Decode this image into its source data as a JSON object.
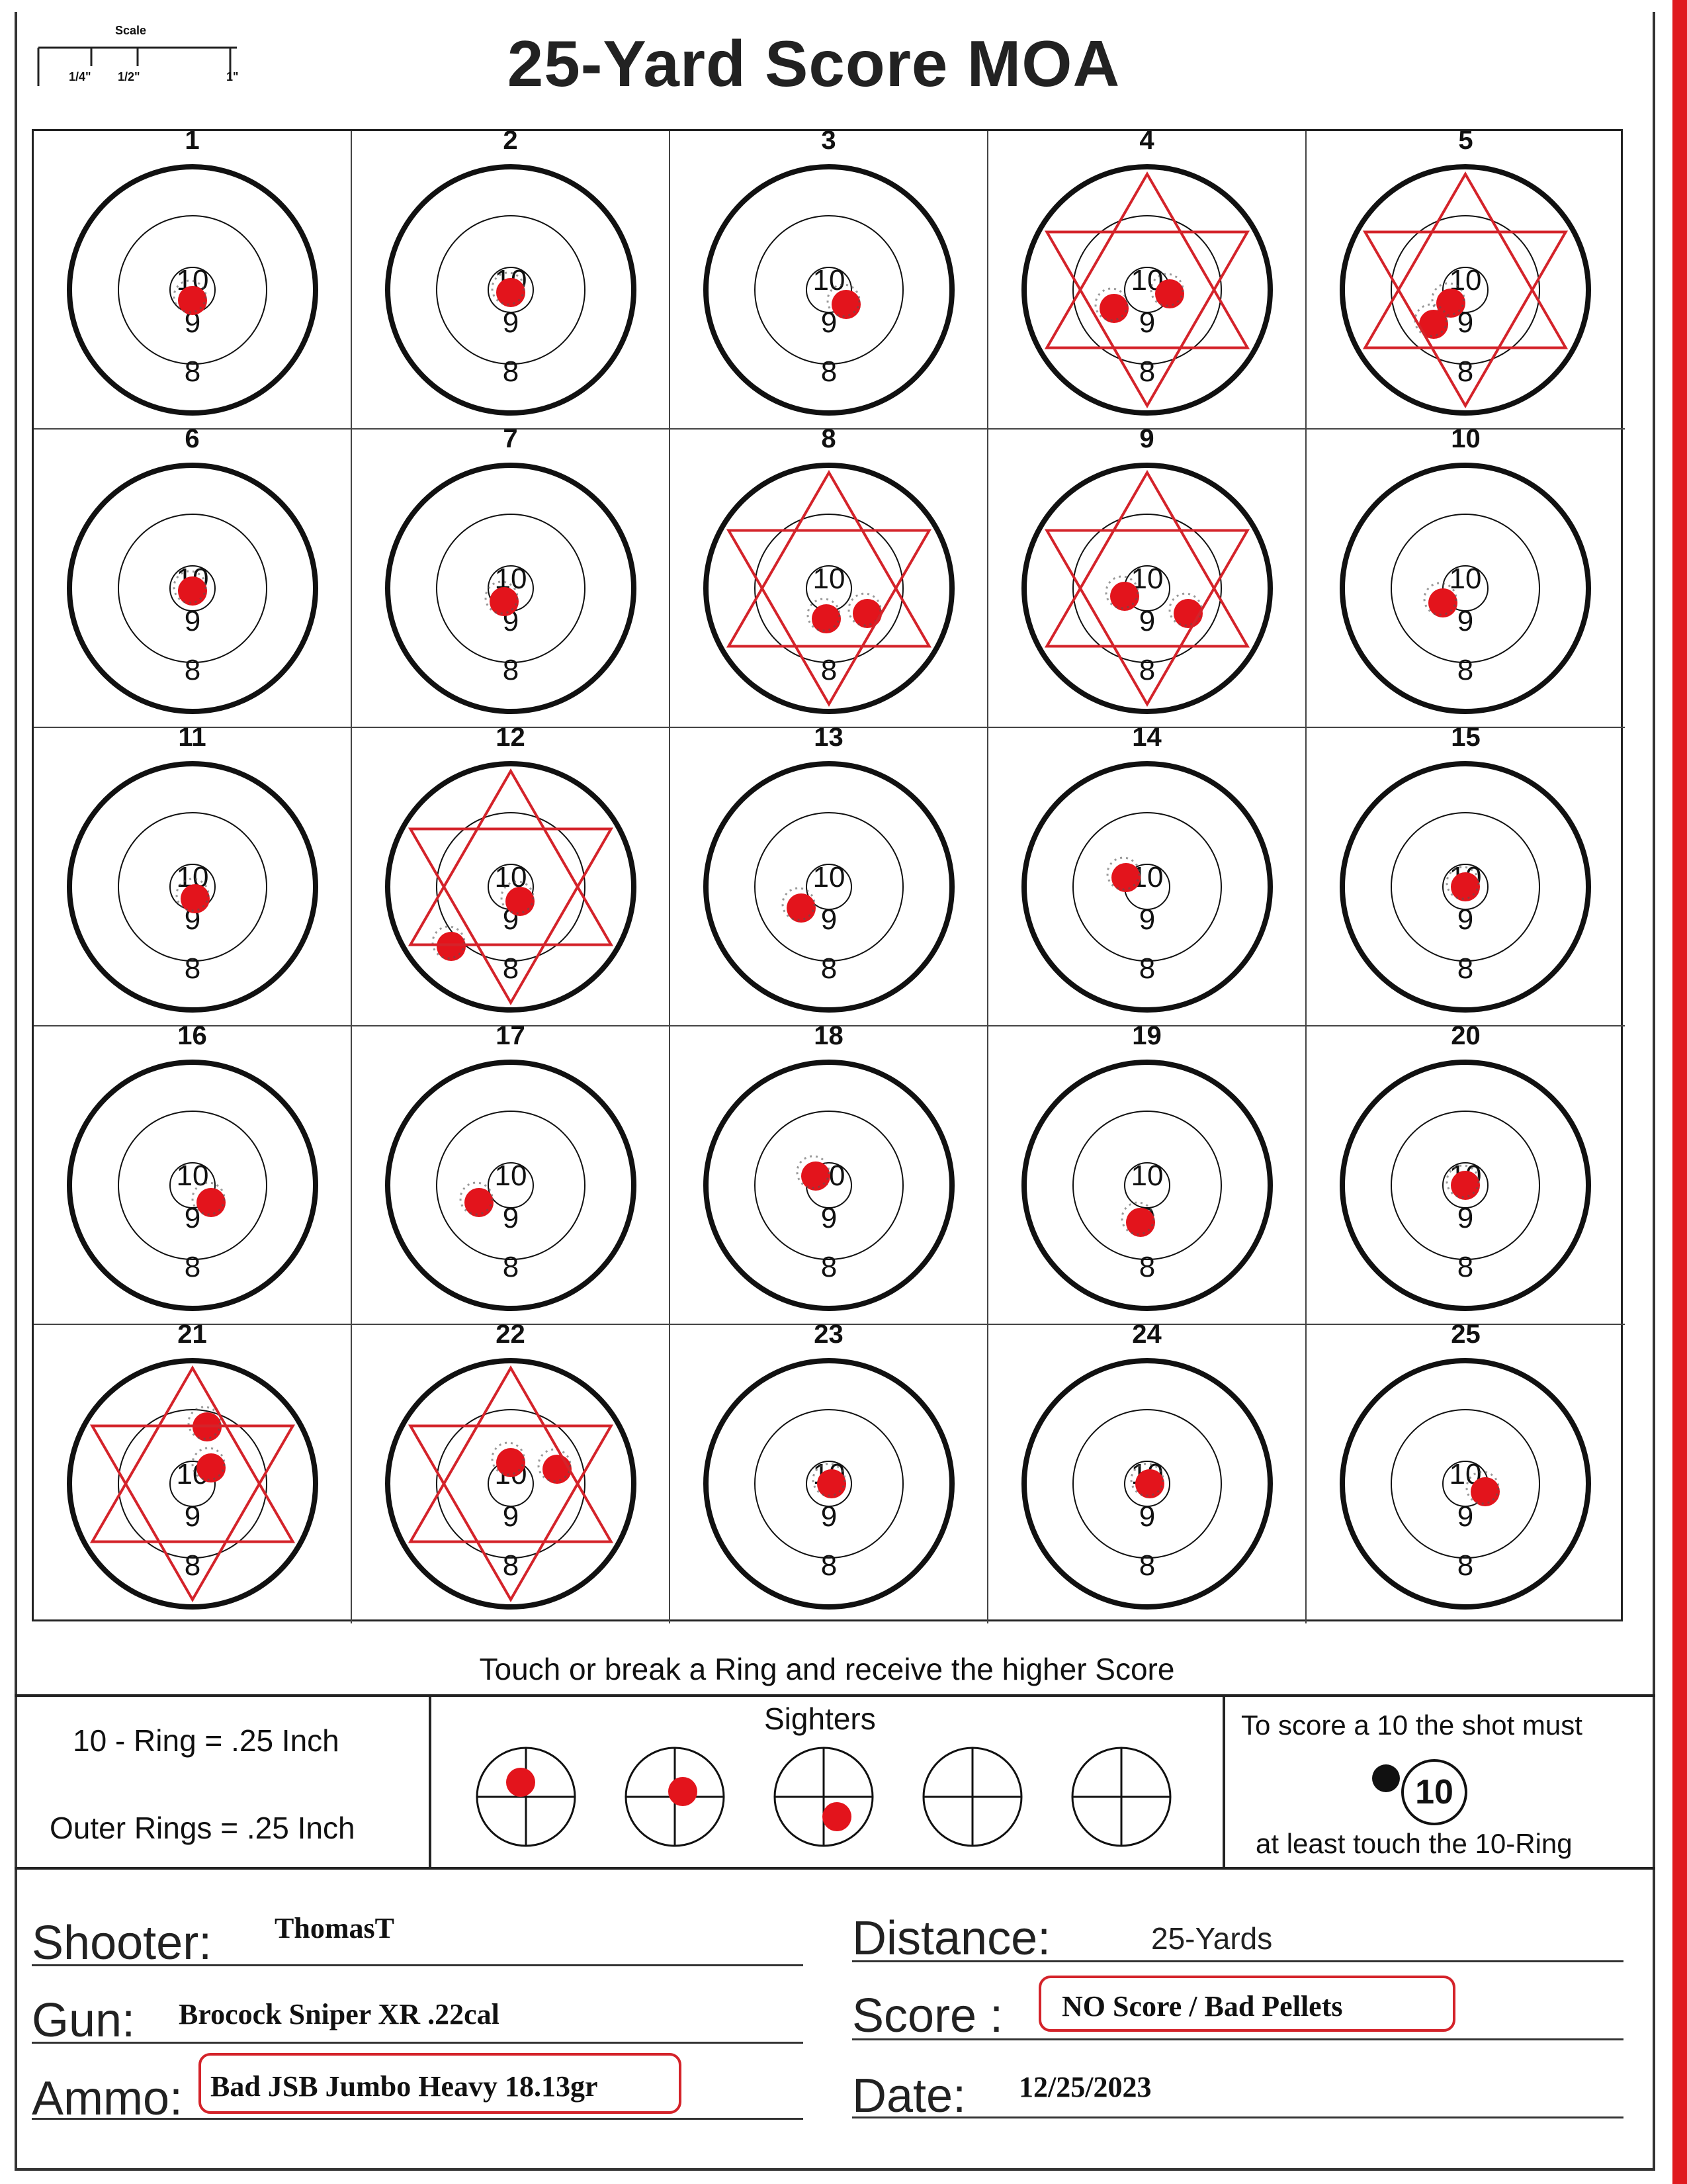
{
  "header": {
    "title": "25-Yard Score MOA",
    "scale_label": "Scale",
    "scale_ticks": [
      "1/4\"",
      "1/2\"",
      "1\""
    ]
  },
  "targets": [
    {
      "number": "1",
      "ring10": "10",
      "ring9": "9",
      "ring8": "8",
      "star": false
    },
    {
      "number": "2",
      "ring10": "10",
      "ring9": "9",
      "ring8": "8",
      "star": false
    },
    {
      "number": "3",
      "ring10": "10",
      "ring9": "9",
      "ring8": "8",
      "star": false
    },
    {
      "number": "4",
      "ring10": "10",
      "ring9": "9",
      "ring8": "8",
      "star": true
    },
    {
      "number": "5",
      "ring10": "10",
      "ring9": "9",
      "ring8": "8",
      "star": true
    },
    {
      "number": "6",
      "ring10": "10",
      "ring9": "9",
      "ring8": "8",
      "star": false
    },
    {
      "number": "7",
      "ring10": "10",
      "ring9": "9",
      "ring8": "8",
      "star": false
    },
    {
      "number": "8",
      "ring10": "10",
      "ring9": "9",
      "ring8": "8",
      "star": true
    },
    {
      "number": "9",
      "ring10": "10",
      "ring9": "9",
      "ring8": "8",
      "star": true
    },
    {
      "number": "10",
      "ring10": "10",
      "ring9": "9",
      "ring8": "8",
      "star": false
    },
    {
      "number": "11",
      "ring10": "10",
      "ring9": "9",
      "ring8": "8",
      "star": false
    },
    {
      "number": "12",
      "ring10": "10",
      "ring9": "9",
      "ring8": "8",
      "star": true
    },
    {
      "number": "13",
      "ring10": "10",
      "ring9": "9",
      "ring8": "8",
      "star": false
    },
    {
      "number": "14",
      "ring10": "10",
      "ring9": "9",
      "ring8": "8",
      "star": false
    },
    {
      "number": "15",
      "ring10": "10",
      "ring9": "9",
      "ring8": "8",
      "star": false
    },
    {
      "number": "16",
      "ring10": "10",
      "ring9": "9",
      "ring8": "8",
      "star": false
    },
    {
      "number": "17",
      "ring10": "10",
      "ring9": "9",
      "ring8": "8",
      "star": false
    },
    {
      "number": "18",
      "ring10": "10",
      "ring9": "9",
      "ring8": "8",
      "star": false
    },
    {
      "number": "19",
      "ring10": "10",
      "ring9": "9",
      "ring8": "8",
      "star": false
    },
    {
      "number": "20",
      "ring10": "10",
      "ring9": "9",
      "ring8": "8",
      "star": false
    },
    {
      "number": "21",
      "ring10": "10",
      "ring9": "9",
      "ring8": "8",
      "star": true
    },
    {
      "number": "22",
      "ring10": "10",
      "ring9": "9",
      "ring8": "8",
      "star": true
    },
    {
      "number": "23",
      "ring10": "10",
      "ring9": "9",
      "ring8": "8",
      "star": false
    },
    {
      "number": "24",
      "ring10": "10",
      "ring9": "9",
      "ring8": "8",
      "star": false
    },
    {
      "number": "25",
      "ring10": "10",
      "ring9": "9",
      "ring8": "8",
      "star": false
    }
  ],
  "rule_text": "Touch or break a Ring and receive the higher Score",
  "ring_info": {
    "ten_ring": "10 - Ring = .25 Inch",
    "outer_rings": "Outer Rings = .25 Inch"
  },
  "sighters": {
    "title": "Sighters",
    "count": 5,
    "hits": [
      true,
      true,
      true,
      false,
      false
    ]
  },
  "scoring_rule": {
    "top": "To score a 10 the shot must",
    "badge": "10",
    "bottom": "at least touch the 10-Ring"
  },
  "form": {
    "shooter_label": "Shooter:",
    "shooter_value": "ThomasT",
    "gun_label": "Gun:",
    "gun_value": "Brocock Sniper XR .22cal",
    "ammo_label": "Ammo:",
    "ammo_value": "Bad JSB Jumbo Heavy 18.13gr",
    "distance_label": "Distance:",
    "distance_value": "25-Yards",
    "score_label": "Score :",
    "score_value": "NO Score / Bad Pellets",
    "date_label": "Date:",
    "date_value": "12/25/2023"
  },
  "colors": {
    "hit": "#e3141c",
    "star": "#d4232a",
    "page_edge": "#e01a1f",
    "ink": "#111111"
  }
}
